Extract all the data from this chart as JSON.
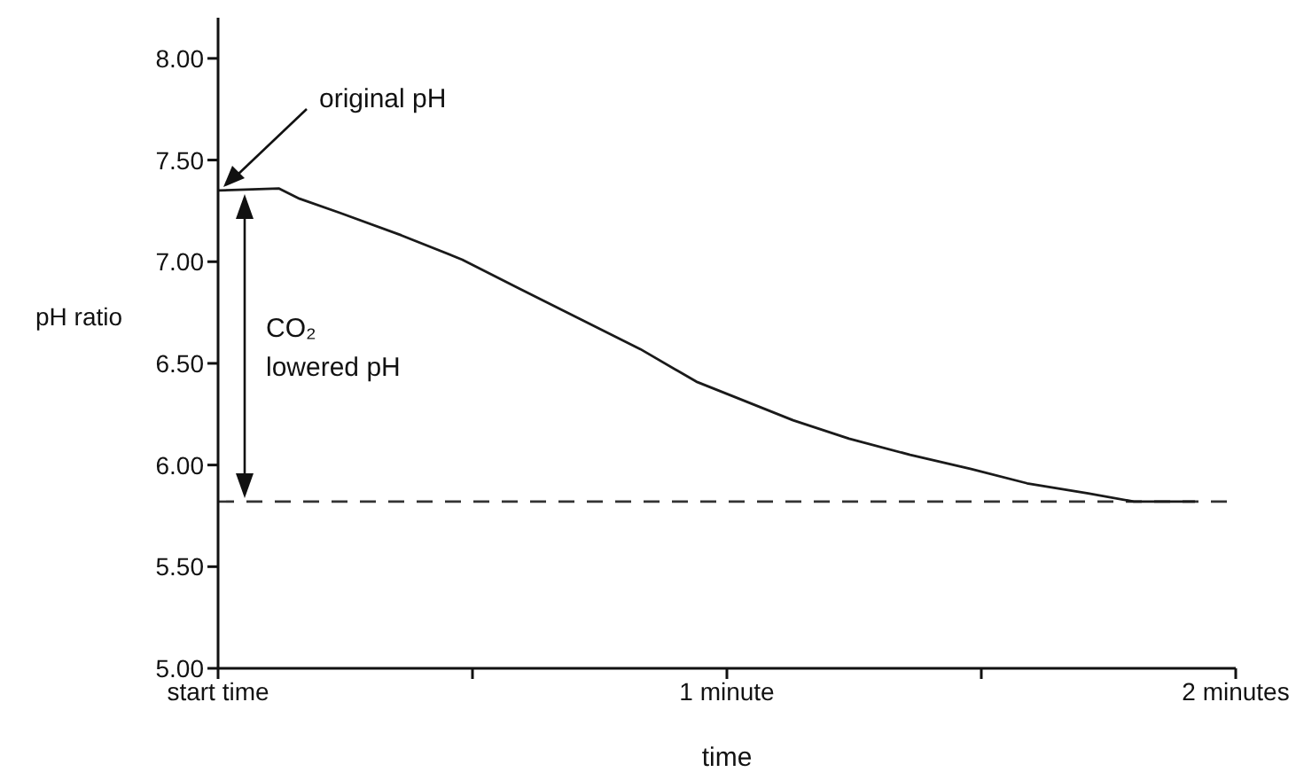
{
  "chart_data": {
    "type": "line",
    "xlabel": "time",
    "ylabel": "pH ratio",
    "xlim": [
      0,
      2
    ],
    "ylim": [
      5,
      8.2
    ],
    "xticks": [
      {
        "value": 0,
        "label": "start time"
      },
      {
        "value": 0.5,
        "label": null
      },
      {
        "value": 1,
        "label": "1 minute"
      },
      {
        "value": 1.5,
        "label": null
      },
      {
        "value": 2,
        "label": "2 minutes"
      }
    ],
    "yticks": [
      {
        "value": 5,
        "label": "5.00"
      },
      {
        "value": 5.5,
        "label": "5.50"
      },
      {
        "value": 6,
        "label": "6.00"
      },
      {
        "value": 6.5,
        "label": "6.50"
      },
      {
        "value": 7,
        "label": "7.00"
      },
      {
        "value": 7.5,
        "label": "7.50"
      },
      {
        "value": 8,
        "label": "8.00"
      }
    ],
    "x": [
      0,
      0.12,
      0.16,
      0.24,
      0.36,
      0.48,
      0.59,
      0.71,
      0.83,
      0.94,
      1.01,
      1.13,
      1.24,
      1.36,
      1.48,
      1.59,
      1.71,
      1.8,
      1.92
    ],
    "series": [
      {
        "color": "#1a1a1a",
        "values": [
          7.35,
          7.36,
          7.31,
          7.24,
          7.13,
          7.01,
          6.87,
          6.72,
          6.57,
          6.41,
          6.34,
          6.22,
          6.13,
          6.05,
          5.98,
          5.91,
          5.86,
          5.82,
          5.82
        ]
      }
    ],
    "ref_lines": [
      {
        "axis": "y",
        "value": 5.82,
        "line_style": "dashed",
        "color": "#333333"
      }
    ],
    "annotations": [
      "original pH",
      "CO₂ lowered pH"
    ],
    "grid": false,
    "legend": false,
    "marker": "none",
    "line_style": "solid"
  }
}
